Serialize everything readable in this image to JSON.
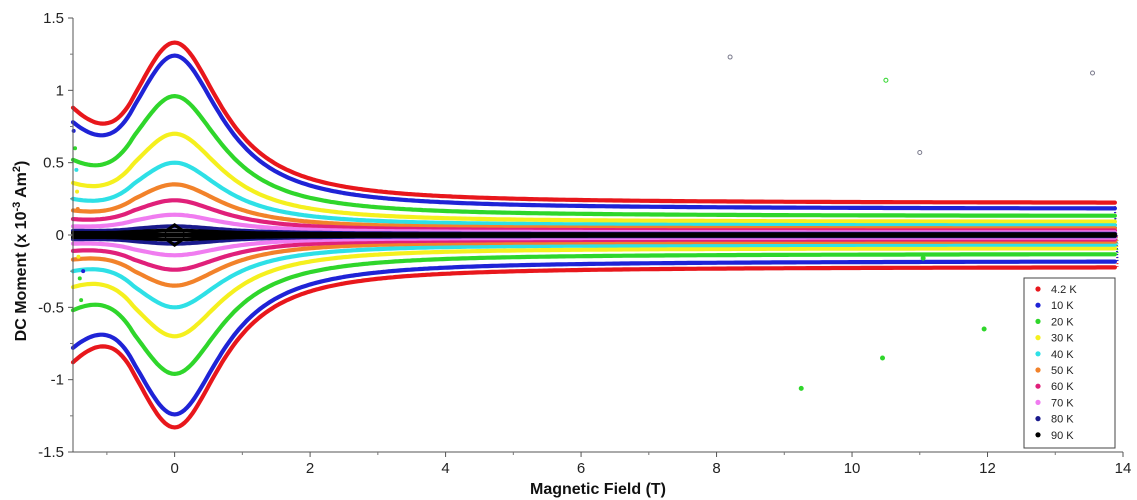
{
  "chart_data": {
    "type": "scatter",
    "title": "",
    "xlabel": "Magnetic Field (T)",
    "ylabel_parts": [
      "DC Moment (x 10",
      "-3",
      " Am",
      "2",
      ")"
    ],
    "xlim": [
      -1.5,
      14
    ],
    "ylim": [
      -1.5,
      1.5
    ],
    "x_ticks": [
      0,
      2,
      4,
      6,
      8,
      10,
      12,
      14
    ],
    "y_ticks": [
      -1.5,
      -1,
      -0.5,
      0,
      0.5,
      1,
      1.5
    ],
    "y_tick_labels": [
      "-1.5",
      "-1",
      "-0.5",
      "0",
      "0.5",
      "1",
      "1.5"
    ],
    "grid": false,
    "legend_position": "bottom-right",
    "series": [
      {
        "name": "4.2 K",
        "color": "#e8171c",
        "peak": 1.33,
        "at_14": 0.22,
        "at_neg15": 0.88
      },
      {
        "name": "10 K",
        "color": "#1f23d6",
        "peak": 1.24,
        "at_14": 0.18,
        "at_neg15": 0.78
      },
      {
        "name": "20 K",
        "color": "#2fd62b",
        "peak": 0.96,
        "at_14": 0.13,
        "at_neg15": 0.52
      },
      {
        "name": "30 K",
        "color": "#f5f01e",
        "peak": 0.7,
        "at_14": 0.09,
        "at_neg15": 0.36
      },
      {
        "name": "40 K",
        "color": "#2ee0e6",
        "peak": 0.5,
        "at_14": 0.065,
        "at_neg15": 0.25
      },
      {
        "name": "50 K",
        "color": "#f2822a",
        "peak": 0.35,
        "at_14": 0.045,
        "at_neg15": 0.17
      },
      {
        "name": "60 K",
        "color": "#e0207a",
        "peak": 0.24,
        "at_14": 0.03,
        "at_neg15": 0.11
      },
      {
        "name": "70 K",
        "color": "#f07cf0",
        "peak": 0.14,
        "at_14": 0.018,
        "at_neg15": 0.06
      },
      {
        "name": "80 K",
        "color": "#1a1a8c",
        "peak": 0.06,
        "at_14": 0.008,
        "at_neg15": 0.03
      },
      {
        "name": "90 K",
        "color": "#000000",
        "peak": 0.03,
        "at_14": 0.004,
        "at_neg15": 0.015
      }
    ],
    "outliers": [
      {
        "x": 8.2,
        "y": 1.23,
        "color": "#7a7a8c",
        "hollow": true
      },
      {
        "x": 10.5,
        "y": 1.07,
        "color": "#2fd62b",
        "hollow": true
      },
      {
        "x": 13.55,
        "y": 1.12,
        "color": "#7a7a8c",
        "hollow": true
      },
      {
        "x": 11.0,
        "y": 0.57,
        "color": "#7a7a8c",
        "hollow": true
      },
      {
        "x": 11.05,
        "y": -0.16,
        "color": "#2fd62b",
        "hollow": false
      },
      {
        "x": 11.95,
        "y": -0.65,
        "color": "#2fd62b",
        "hollow": false
      },
      {
        "x": 10.45,
        "y": -0.85,
        "color": "#2fd62b",
        "hollow": false
      },
      {
        "x": 9.25,
        "y": -1.06,
        "color": "#2fd62b",
        "hollow": false
      },
      {
        "x": 13.75,
        "y": -1.36,
        "color": "#1f23d6",
        "hollow": false
      }
    ]
  }
}
